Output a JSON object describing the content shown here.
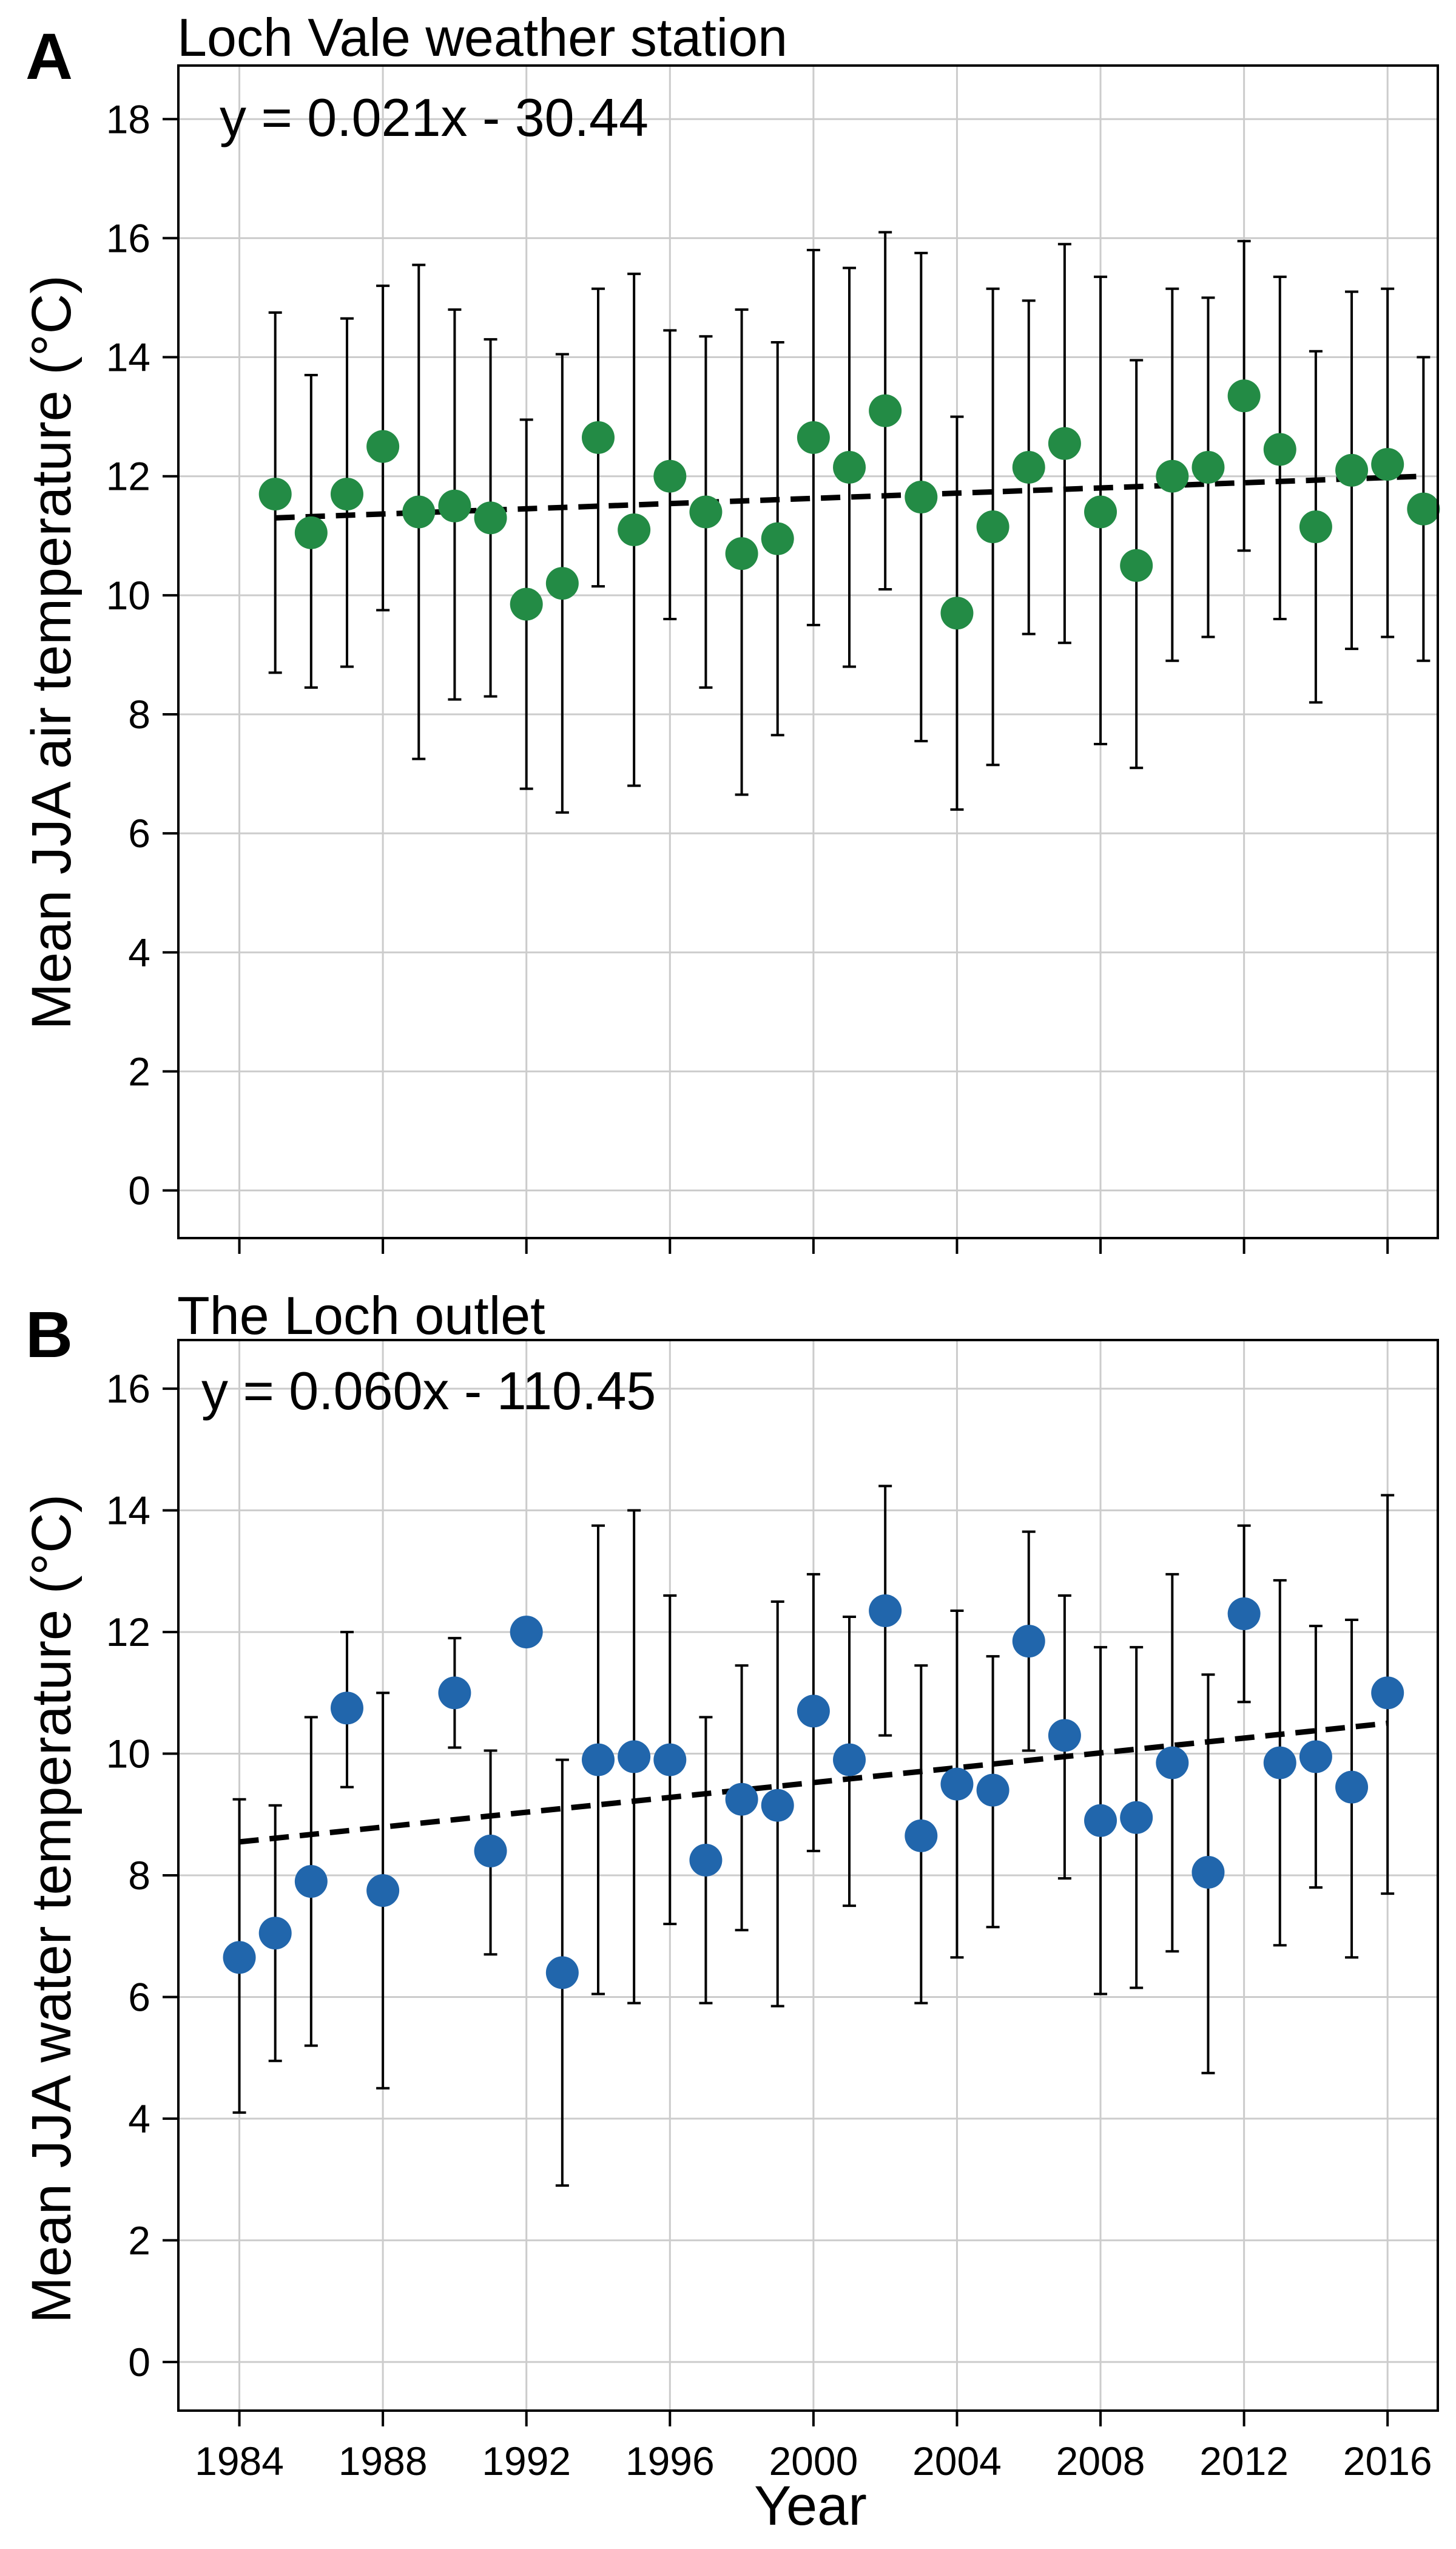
{
  "figure": {
    "xlabel": "Year",
    "colors": {
      "panel_a_points": "#238b45",
      "panel_b_points": "#2166ac",
      "grid": "#cccccc",
      "frame": "#000000"
    }
  },
  "chart_data": [
    {
      "type": "scatter",
      "panel_letter": "A",
      "title": "Loch Vale weather station",
      "annotation": "y = 0.021x - 30.44",
      "xlabel": "Year",
      "ylabel": "Mean JJA air temperature (°C)",
      "xlim": [
        1982.3,
        2017.4
      ],
      "ylim": [
        -0.8,
        18.9
      ],
      "x_ticks": [
        1984,
        1988,
        1992,
        1996,
        2000,
        2004,
        2008,
        2012,
        2016
      ],
      "y_ticks": [
        0,
        2,
        4,
        6,
        8,
        10,
        12,
        14,
        16,
        18
      ],
      "show_x_tick_labels": false,
      "grid": true,
      "point_color": "#238b45",
      "trend": {
        "slope": 0.021,
        "intercept": -30.44,
        "x_range": [
          1985,
          2017
        ],
        "y_range": [
          11.3,
          12.0
        ]
      },
      "series": [
        {
          "x": [
            1985,
            1986,
            1987,
            1988,
            1989,
            1990,
            1991,
            1992,
            1993,
            1994,
            1995,
            1996,
            1997,
            1998,
            1999,
            2000,
            2001,
            2002,
            2003,
            2004,
            2005,
            2006,
            2007,
            2008,
            2009,
            2010,
            2011,
            2012,
            2013,
            2014,
            2015,
            2016,
            2017
          ],
          "y": [
            11.7,
            11.05,
            11.7,
            12.5,
            11.4,
            11.5,
            11.3,
            9.85,
            10.2,
            12.65,
            11.1,
            12.0,
            11.4,
            10.7,
            10.95,
            12.65,
            12.15,
            13.1,
            11.65,
            9.7,
            11.15,
            12.15,
            12.55,
            11.4,
            10.5,
            12.0,
            12.15,
            13.35,
            12.45,
            11.15,
            12.1,
            12.2,
            11.45
          ],
          "error_low": [
            8.7,
            8.45,
            8.8,
            9.75,
            7.25,
            8.25,
            8.3,
            6.75,
            6.35,
            10.15,
            6.8,
            9.6,
            8.45,
            6.65,
            7.65,
            9.5,
            8.8,
            10.1,
            7.55,
            6.4,
            7.15,
            9.35,
            9.2,
            7.5,
            7.1,
            8.9,
            9.3,
            10.75,
            9.6,
            8.2,
            9.1,
            9.3,
            8.9
          ],
          "error_high": [
            14.75,
            13.7,
            14.65,
            15.2,
            15.55,
            14.8,
            14.3,
            12.95,
            14.05,
            15.15,
            15.4,
            14.45,
            14.35,
            14.8,
            14.25,
            15.8,
            15.5,
            16.1,
            15.75,
            13.0,
            15.15,
            14.95,
            15.9,
            15.35,
            13.95,
            15.15,
            15.0,
            15.95,
            15.35,
            14.1,
            15.1,
            15.15,
            14.0
          ]
        }
      ]
    },
    {
      "type": "scatter",
      "panel_letter": "B",
      "title": "The Loch outlet",
      "annotation": "y = 0.060x - 110.45",
      "xlabel": "Year",
      "ylabel": "Mean JJA water temperature (°C)",
      "xlim": [
        1982.3,
        2017.4
      ],
      "ylim": [
        -0.8,
        16.8
      ],
      "x_ticks": [
        1984,
        1988,
        1992,
        1996,
        2000,
        2004,
        2008,
        2012,
        2016
      ],
      "x_tick_labels": [
        "1984",
        "1988",
        "1992",
        "1996",
        "2000",
        "2004",
        "2008",
        "2012",
        "2016"
      ],
      "y_ticks": [
        0,
        2,
        4,
        6,
        8,
        10,
        12,
        14,
        16
      ],
      "show_x_tick_labels": true,
      "grid": true,
      "point_color": "#2166ac",
      "trend": {
        "slope": 0.06,
        "intercept": -110.45,
        "x_range": [
          1984,
          2016
        ],
        "y_range": [
          8.55,
          10.5
        ]
      },
      "series": [
        {
          "x": [
            1984,
            1985,
            1986,
            1987,
            1988,
            1990,
            1991,
            1992,
            1993,
            1994,
            1995,
            1996,
            1997,
            1998,
            1999,
            2000,
            2001,
            2002,
            2003,
            2004,
            2005,
            2006,
            2007,
            2008,
            2009,
            2010,
            2011,
            2012,
            2013,
            2014,
            2015,
            2016
          ],
          "y": [
            6.65,
            7.05,
            7.9,
            10.75,
            7.75,
            11.0,
            8.4,
            12.0,
            6.4,
            9.9,
            9.95,
            9.9,
            8.25,
            9.25,
            9.15,
            10.7,
            9.9,
            12.35,
            8.65,
            9.5,
            9.4,
            11.85,
            10.3,
            8.9,
            8.95,
            9.85,
            8.05,
            12.3,
            9.85,
            9.95,
            9.45,
            11.0
          ],
          "error_low": [
            4.1,
            4.95,
            5.2,
            9.45,
            4.5,
            10.1,
            6.7,
            12.0,
            2.9,
            6.05,
            5.9,
            7.2,
            5.9,
            7.1,
            5.85,
            8.4,
            7.5,
            10.3,
            5.9,
            6.65,
            7.15,
            10.05,
            7.95,
            6.05,
            6.15,
            6.75,
            4.75,
            10.85,
            6.85,
            7.8,
            6.65,
            7.7
          ],
          "error_high": [
            9.25,
            9.15,
            10.6,
            12.0,
            11.0,
            11.9,
            10.05,
            12.0,
            9.9,
            13.75,
            14.0,
            12.6,
            10.6,
            11.45,
            12.5,
            12.95,
            12.25,
            14.4,
            11.45,
            12.35,
            11.6,
            13.65,
            12.6,
            11.75,
            11.75,
            12.95,
            11.3,
            13.75,
            12.85,
            12.1,
            12.2,
            14.25
          ]
        }
      ]
    }
  ]
}
